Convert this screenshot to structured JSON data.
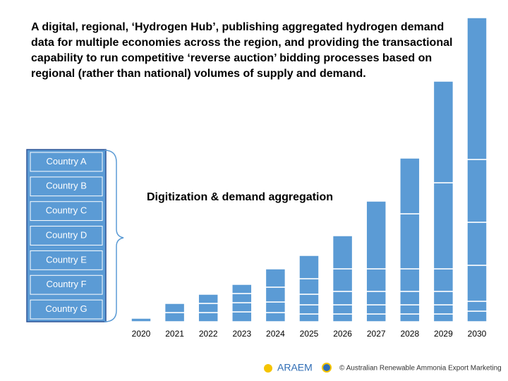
{
  "chart_data": {
    "type": "stacked-bar",
    "title": "A digital, regional, ‘Hydrogen Hub’, publishing aggregated hydrogen demand data for multiple economies across the region, and providing the transactional capability to run competitive ‘reverse auction’ bidding processes based on regional (rather than national) volumes of supply and demand.",
    "annotation": "Digitization & demand aggregation",
    "countries": [
      "Country A",
      "Country B",
      "Country C",
      "Country D",
      "Country E",
      "Country F",
      "Country G"
    ],
    "categories": [
      "2020",
      "2021",
      "2022",
      "2023",
      "2024",
      "2025",
      "2026",
      "2027",
      "2028",
      "2029",
      "2030"
    ],
    "color": "#5b9bd5",
    "ylim": [
      0,
      431
    ],
    "series": [
      {
        "values": [
          5,
          13,
          13,
          14,
          13,
          11,
          11,
          11,
          11,
          11,
          15
        ]
      },
      {
        "values": [
          null,
          13,
          13,
          13,
          15,
          13,
          13,
          13,
          13,
          13,
          14
        ]
      },
      {
        "values": [
          null,
          null,
          13,
          13,
          21,
          15,
          19,
          19,
          19,
          19,
          51
        ]
      },
      {
        "values": [
          null,
          null,
          null,
          13,
          26,
          22,
          32,
          32,
          32,
          32,
          61
        ]
      },
      {
        "values": [
          null,
          null,
          null,
          null,
          null,
          33,
          47,
          96,
          78,
          122,
          89
        ]
      },
      {
        "values": [
          null,
          null,
          null,
          null,
          null,
          null,
          null,
          null,
          79,
          144,
          201
        ]
      }
    ]
  },
  "footer": {
    "logo": "ARAEM",
    "copyright": "© Australian Renewable Ammonia Export Marketing"
  }
}
